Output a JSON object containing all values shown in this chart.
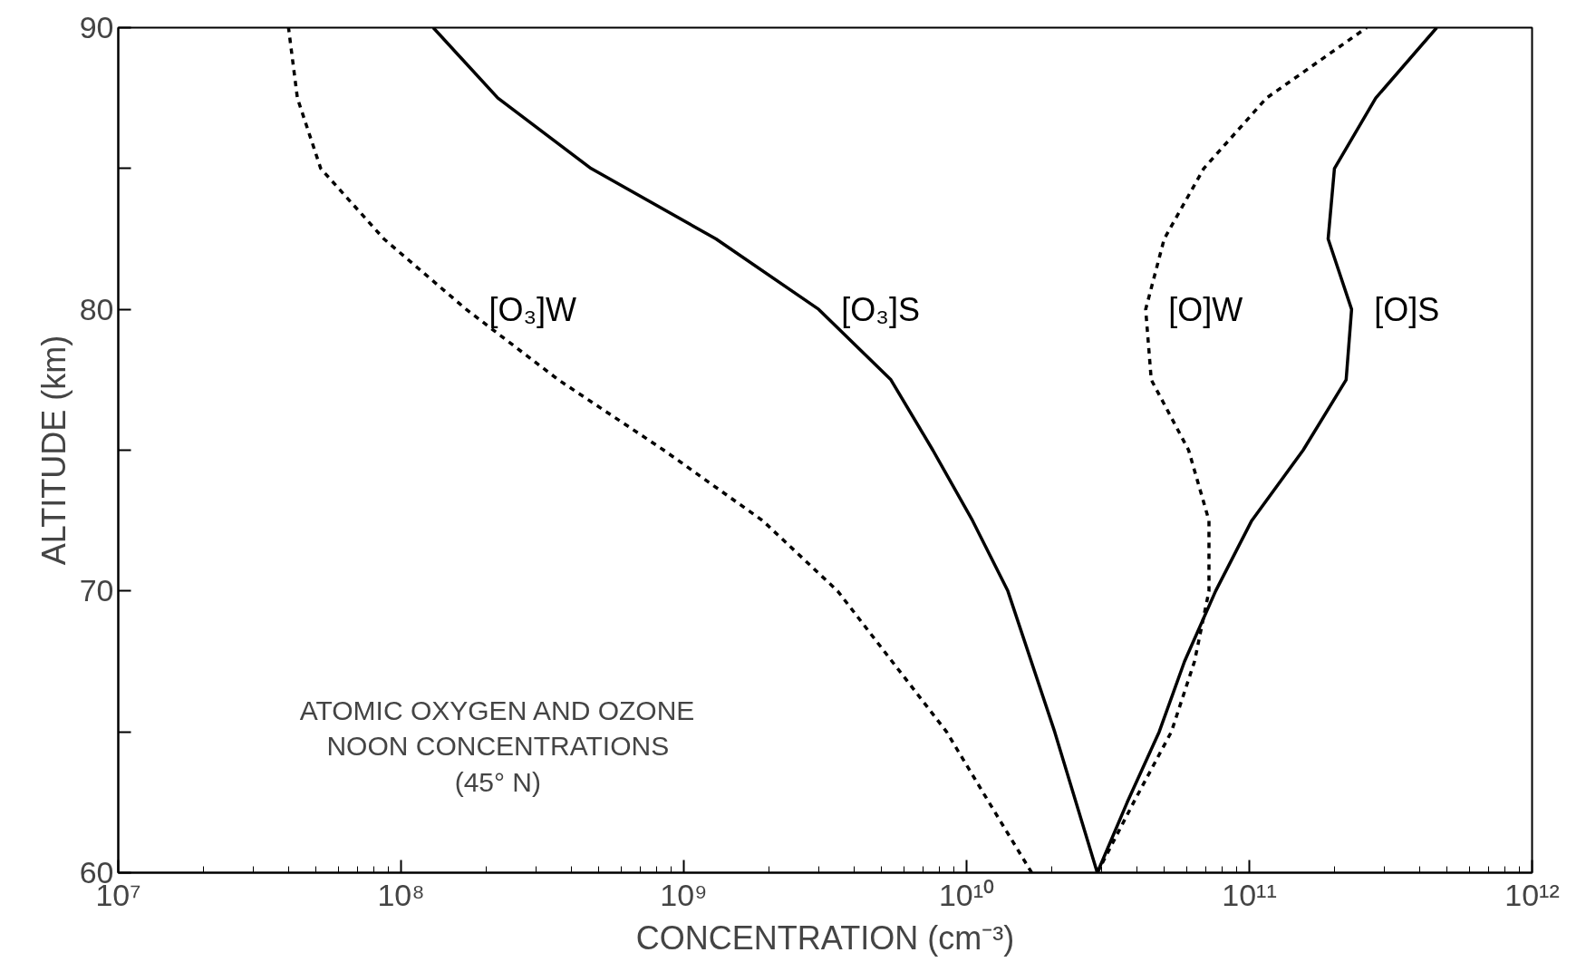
{
  "chart_data": {
    "type": "line",
    "xlabel": "CONCENTRATION (cm⁻³)",
    "ylabel": "ALTITUDE (km)",
    "log": "x",
    "xlim": [
      10000000.0,
      1000000000000.0
    ],
    "ylim": [
      60,
      90
    ],
    "xticks": [
      {
        "value": 10000000.0,
        "label": "10⁷"
      },
      {
        "value": 100000000.0,
        "label": "10⁸"
      },
      {
        "value": 1000000000.0,
        "label": "10⁹"
      },
      {
        "value": 10000000000.0,
        "label": "10¹⁰"
      },
      {
        "value": 100000000000.0,
        "label": "10¹¹"
      },
      {
        "value": 1000000000000.0,
        "label": "10¹²"
      }
    ],
    "yticks": [
      60,
      {
        "value": 65,
        "label": null
      },
      70,
      {
        "value": 75,
        "label": null
      },
      80,
      {
        "value": 85,
        "label": null
      },
      90
    ],
    "grid": false,
    "annotations": [
      "ATOMIC OXYGEN AND OZONE\nNOON CONCENTRATIONS\n(45° N)"
    ],
    "series": [
      {
        "name": "[O₃]W",
        "color": "#000000",
        "line_style": "dashed",
        "x": [
          17000000000.0,
          12000000000.0,
          8500000000.0,
          3500000000.0,
          1900000000.0,
          850000000.0,
          360000000.0,
          170000000.0,
          87000000.0,
          52000000.0,
          43000000.0,
          40000000.0
        ],
        "values": [
          60,
          62.5,
          65,
          70,
          72.5,
          75,
          77.5,
          80,
          82.5,
          85,
          87.5,
          90
        ]
      },
      {
        "name": "[O₃]S",
        "color": "#000000",
        "line_style": "solid",
        "x": [
          29000000000.0,
          20500000000.0,
          14000000000.0,
          10500000000.0,
          7600000000.0,
          5400000000.0,
          3000000000.0,
          1300000000.0,
          470000000.0,
          220000000.0,
          130000000.0
        ],
        "values": [
          60,
          65,
          70,
          72.5,
          75,
          77.5,
          80,
          82.5,
          85,
          87.5,
          90
        ]
      },
      {
        "name": "[O]W",
        "color": "#000000",
        "line_style": "dashed",
        "x": [
          29000000000.0,
          39000000000.0,
          53000000000.0,
          64000000000.0,
          72000000000.0,
          72000000000.0,
          61000000000.0,
          45000000000.0,
          43000000000.0,
          50000000000.0,
          69000000000.0,
          115000000000.0,
          260000000000.0
        ],
        "values": [
          60,
          62.5,
          65,
          67.5,
          70,
          72.5,
          75,
          77.5,
          80,
          82.5,
          85,
          87.5,
          90
        ]
      },
      {
        "name": "[O]S",
        "color": "#000000",
        "line_style": "solid",
        "x": [
          29000000000.0,
          37000000000.0,
          48000000000.0,
          59000000000.0,
          76000000000.0,
          102000000000.0,
          155000000000.0,
          220000000000.0,
          230000000000.0,
          190000000000.0,
          200000000000.0,
          280000000000.0,
          460000000000.0
        ],
        "values": [
          60,
          62.5,
          65,
          67.5,
          70,
          72.5,
          75,
          77.5,
          80,
          82.5,
          85,
          87.5,
          90
        ]
      }
    ]
  }
}
